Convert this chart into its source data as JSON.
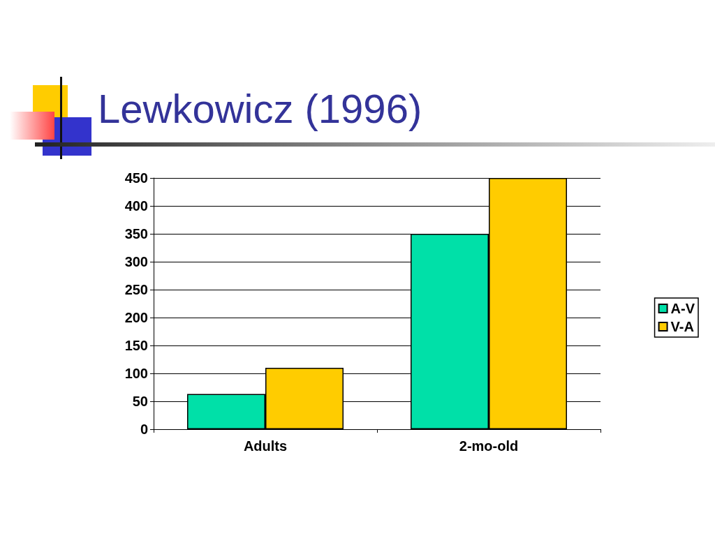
{
  "chart_data": {
    "type": "bar",
    "title": "Lewkowicz (1996)",
    "categories": [
      "Adults",
      "2-mo-old"
    ],
    "series": [
      {
        "name": "A-V",
        "color": "#00e0a8",
        "values": [
          63,
          350
        ]
      },
      {
        "name": "V-A",
        "color": "#ffcc00",
        "values": [
          110,
          450
        ]
      }
    ],
    "ylim": [
      0,
      450
    ],
    "yticks": [
      0,
      50,
      100,
      150,
      200,
      250,
      300,
      350,
      400,
      450
    ],
    "grid": "y",
    "legend": "right"
  }
}
